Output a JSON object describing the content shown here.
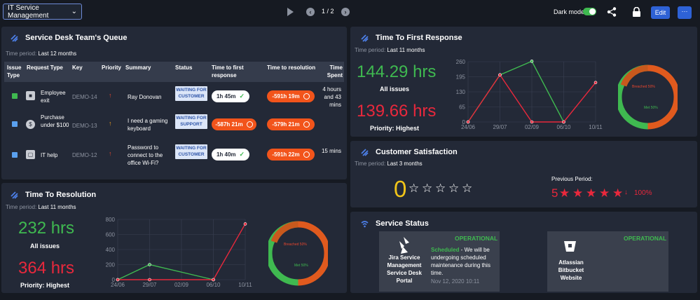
{
  "toolbar": {
    "dashboard_name": "IT Service Management",
    "page_indicator": "1 / 2",
    "dark_mode_label": "Dark mode",
    "dark_mode_on": true,
    "edit_label": "Edit",
    "more_label": "···"
  },
  "queue": {
    "title": "Service Desk Team's Queue",
    "period_label": "Time period:",
    "period_value": "Last 12 months",
    "columns": {
      "issue_type": "Issue Type",
      "request_type": "Request Type",
      "key": "Key",
      "priority": "Priority",
      "summary": "Summary",
      "status": "Status",
      "first_response": "Time to first response",
      "resolution": "Time to resolution",
      "time_spent": "Time Spent"
    },
    "rows": [
      {
        "issue_color": "#3fb950",
        "request_type": "Employee exit",
        "key": "DEMO-14",
        "priority_color": "#e8462e",
        "summary": "Ray Donovan",
        "status": "WAITING FOR CUSTOMER",
        "first_response": "1h 45m",
        "first_response_ok": true,
        "resolution": "-591h 19m",
        "time_spent": "4 hours and 43 mins"
      },
      {
        "issue_color": "#5aa0ee",
        "request_type": "Purchase under $100",
        "key": "DEMO-13",
        "priority_color": "#f2a01b",
        "summary": "I need a gaming keyboard",
        "status": "WAITING FOR SUPPORT",
        "first_response": "-587h 21m",
        "first_response_ok": false,
        "resolution": "-579h 21m",
        "time_spent": ""
      },
      {
        "issue_color": "#5aa0ee",
        "request_type": "IT help",
        "key": "DEMO-12",
        "priority_color": "#e8462e",
        "summary": "Password to connect to the office Wi-Fi?",
        "status": "WAITING FOR CUSTOMER",
        "first_response": "1h 40m",
        "first_response_ok": true,
        "resolution": "-591h 22m",
        "time_spent": "15 mins"
      }
    ]
  },
  "resolution": {
    "title": "Time To Resolution",
    "period_label": "Time period:",
    "period_value": "Last 11 months",
    "all_value": "232 hrs",
    "all_label": "All issues",
    "high_value": "364 hrs",
    "high_label": "Priority: Highest",
    "colors": {
      "all": "#3fb950",
      "high": "#e8283c"
    },
    "gauge": {
      "breached_label": "Breached 50%",
      "met_label": "Met 50%",
      "breached_fraction": 0.5
    }
  },
  "first_response": {
    "title": "Time To First Response",
    "period_label": "Time period:",
    "period_value": "Last 11 months",
    "all_value": "144.29 hrs",
    "all_label": "All issues",
    "high_value": "139.66 hrs",
    "high_label": "Priority: Highest",
    "gauge": {
      "breached_label": "Breached 50%",
      "met_label": "Met 50%",
      "breached_fraction": 0.5
    }
  },
  "satisfaction": {
    "title": "Customer Satisfaction",
    "period_label": "Time period:",
    "period_value": "Last 3 months",
    "current_value": "0",
    "current_stars": 0,
    "previous_label": "Previous Period:",
    "previous_value": "5",
    "previous_stars": 5,
    "change": "100%",
    "star_glyph_empty": "☆",
    "star_glyph_full": "★"
  },
  "service_status": {
    "title": "Service Status",
    "services": [
      {
        "name": "Jira Service Management Service Desk Portal",
        "status": "OPERATIONAL",
        "note_label": "Scheduled",
        "note_text": " - We will be undergoing scheduled maintenance during this time.",
        "note_date": "Nov 12, 2020 10:11"
      },
      {
        "name": "Atlassian Bitbucket Website",
        "status": "OPERATIONAL"
      }
    ]
  },
  "chart_data": [
    {
      "type": "line",
      "title": "Time To Resolution",
      "x": [
        "24/06",
        "29/07",
        "02/09",
        "06/10",
        "10/11"
      ],
      "ylim": [
        0,
        800
      ],
      "yticks": [
        0,
        200,
        400,
        600,
        800
      ],
      "series": [
        {
          "name": "All issues",
          "color": "#3fb950",
          "points": [
            [
              "24/06",
              0
            ],
            [
              "29/07",
              200
            ],
            [
              "06/10",
              0
            ]
          ]
        },
        {
          "name": "Priority: Highest",
          "color": "#e8283c",
          "points": [
            [
              "24/06",
              0
            ],
            [
              "29/07",
              0
            ],
            [
              "06/10",
              0
            ],
            [
              "10/11",
              740
            ]
          ]
        }
      ]
    },
    {
      "type": "line",
      "title": "Time To First Response",
      "x": [
        "24/06",
        "29/07",
        "02/09",
        "06/10",
        "10/11"
      ],
      "ylim": [
        0,
        260
      ],
      "yticks": [
        0,
        65,
        130,
        195,
        260
      ],
      "series": [
        {
          "name": "All issues",
          "color": "#3fb950",
          "points": [
            [
              "24/06",
              0
            ],
            [
              "29/07",
              203
            ],
            [
              "02/09",
              262
            ],
            [
              "06/10",
              0
            ]
          ]
        },
        {
          "name": "Priority: Highest",
          "color": "#e8283c",
          "points": [
            [
              "24/06",
              0
            ],
            [
              "29/07",
              203
            ],
            [
              "02/09",
              0
            ],
            [
              "06/10",
              0
            ],
            [
              "10/11",
              170
            ]
          ]
        }
      ]
    }
  ]
}
